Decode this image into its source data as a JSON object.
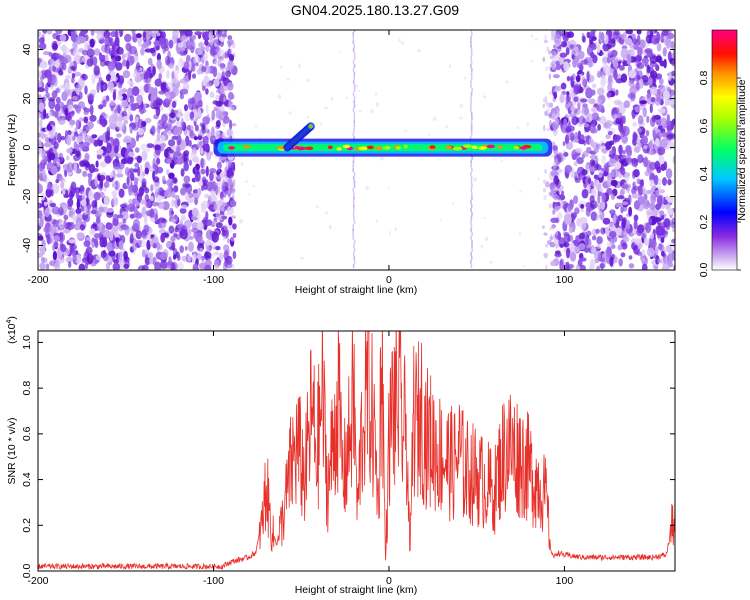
{
  "title": "GN04.2025.180.13.27.G09",
  "chart_data": [
    {
      "type": "heatmap",
      "title": "GN04.2025.180.13.27.G09",
      "xlabel": "Height of straight line (km)",
      "ylabel": "Frequency (Hz)",
      "xlim": [
        -200,
        163
      ],
      "ylim": [
        -50,
        48
      ],
      "x_ticks": [
        -200,
        -100,
        0,
        100
      ],
      "y_ticks": [
        -40,
        -20,
        0,
        20,
        40
      ],
      "colorbar": {
        "label": "Normalized spectral amplitude",
        "range": [
          0,
          1
        ],
        "ticks": [
          0.0,
          0.2,
          0.4,
          0.6,
          0.8
        ],
        "tick_labels": [
          "0.0",
          "0.2",
          "0.4",
          "0.6",
          "0.8"
        ],
        "colormap": [
          "#ffffff",
          "#8a2be2",
          "#0000ff",
          "#00ffff",
          "#00ff00",
          "#ffff00",
          "#ff8000",
          "#ff0000",
          "#ff0080"
        ]
      },
      "noise_regions_x": [
        [
          -200,
          -88
        ],
        [
          93,
          163
        ]
      ],
      "sparse_region_x": [
        -88,
        93
      ],
      "signal_band": {
        "frequency_hz": 0,
        "x_range": [
          -100,
          93
        ],
        "features": [
          {
            "x_start": -58,
            "x_end": -44,
            "freq_start": 0,
            "freq_end": 9
          }
        ]
      },
      "vertical_streaks_x": [
        -20,
        47
      ]
    },
    {
      "type": "line",
      "xlabel": "Height of straight line (km)",
      "ylabel": "SNR (10 * v/v)",
      "y_multiplier": "(x10",
      "y_multiplier_exp": "4",
      "xlim": [
        -200,
        163
      ],
      "ylim": [
        0,
        1.05
      ],
      "x_ticks": [
        -200,
        -100,
        0,
        100
      ],
      "y_ticks": [
        0.0,
        0.2,
        0.4,
        0.6,
        0.8,
        1.0
      ],
      "line_color": "#e8302a",
      "series": [
        {
          "x": [
            -200,
            -190,
            -180,
            -170,
            -160,
            -150,
            -140,
            -130,
            -120,
            -110,
            -100,
            -95,
            -90,
            -85,
            -80,
            -76,
            -72,
            -70,
            -67,
            -64,
            -60,
            -56,
            -52,
            -48,
            -44,
            -41,
            -38,
            -35,
            -32,
            -29,
            -26,
            -23,
            -20,
            -18,
            -16,
            -14,
            -12,
            -10,
            -8,
            -6,
            -4,
            -2,
            0,
            2,
            4,
            6,
            8,
            10,
            12,
            14,
            16,
            18,
            20,
            22,
            25,
            28,
            31,
            34,
            37,
            40,
            43,
            46,
            49,
            52,
            55,
            58,
            60,
            62,
            65,
            68,
            71,
            74,
            77,
            80,
            83,
            86,
            88,
            90,
            92,
            94,
            96,
            100,
            110,
            120,
            130,
            140,
            150,
            158,
            162
          ],
          "y": [
            0.02,
            0.02,
            0.02,
            0.02,
            0.02,
            0.02,
            0.02,
            0.02,
            0.02,
            0.02,
            0.02,
            0.02,
            0.04,
            0.05,
            0.06,
            0.08,
            0.22,
            0.38,
            0.18,
            0.12,
            0.25,
            0.45,
            0.55,
            0.4,
            0.7,
            0.5,
            0.78,
            0.35,
            0.55,
            0.75,
            0.4,
            0.55,
            0.78,
            0.25,
            0.55,
            0.72,
            0.8,
            0.7,
            0.55,
            0.3,
            1.04,
            0.02,
            0.55,
            0.72,
            0.7,
            0.76,
            0.6,
            0.62,
            0.05,
            0.7,
            0.62,
            0.72,
            0.62,
            0.58,
            0.56,
            0.52,
            0.5,
            0.48,
            0.46,
            0.52,
            0.44,
            0.43,
            0.42,
            0.4,
            0.38,
            0.36,
            0.34,
            0.42,
            0.5,
            0.55,
            0.52,
            0.5,
            0.48,
            0.44,
            0.4,
            0.38,
            0.35,
            0.3,
            0.1,
            0.06,
            0.08,
            0.07,
            0.06,
            0.06,
            0.06,
            0.06,
            0.06,
            0.07,
            0.22
          ]
        }
      ]
    }
  ]
}
